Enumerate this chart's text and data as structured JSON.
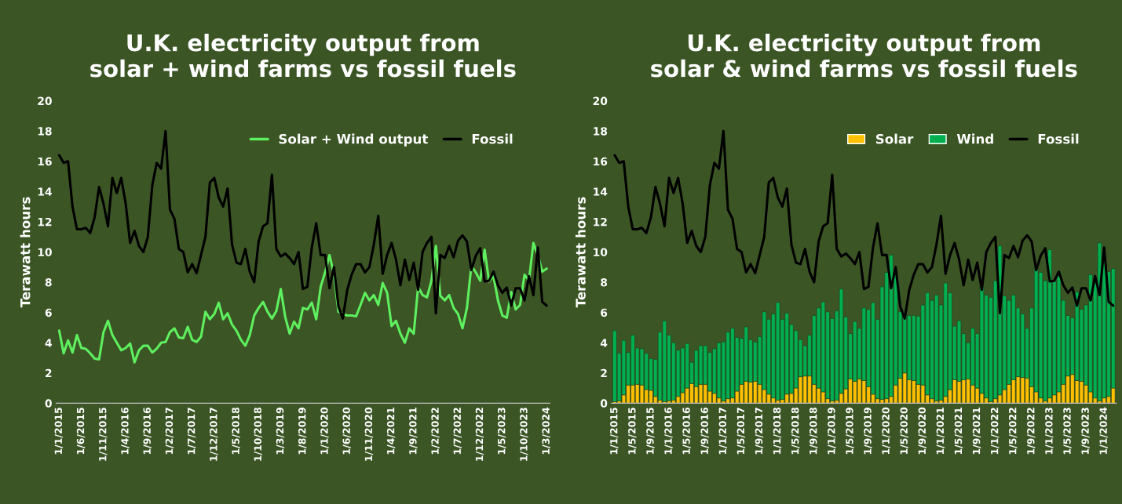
{
  "chart_data": [
    {
      "type": "line",
      "title": "U.K. electricity output from\nsolar + wind farms vs fossil fuels",
      "ylabel": "Terawatt hours",
      "ylim": [
        0,
        20
      ],
      "yticks": [
        0,
        2,
        4,
        6,
        8,
        10,
        12,
        14,
        16,
        18,
        20
      ],
      "legend": "top right",
      "categories": [
        "1/1/2015",
        null,
        null,
        null,
        null,
        "1/6/2015",
        null,
        null,
        null,
        null,
        "1/11/2015",
        null,
        null,
        null,
        null,
        "1/4/2016",
        null,
        null,
        null,
        null,
        "1/9/2016",
        null,
        null,
        null,
        null,
        "1/2/2017",
        null,
        null,
        null,
        null,
        "1/7/2017",
        null,
        null,
        null,
        null,
        "1/12/2017",
        null,
        null,
        null,
        null,
        "1/5/2018",
        null,
        null,
        null,
        null,
        "1/10/2018",
        null,
        null,
        null,
        null,
        "1/3/2019",
        null,
        null,
        null,
        null,
        "1/8/2019",
        null,
        null,
        null,
        null,
        "1/1/2020",
        null,
        null,
        null,
        null,
        "1/6/2020",
        null,
        null,
        null,
        null,
        "1/11/2020",
        null,
        null,
        null,
        null,
        "1/4/2021",
        null,
        null,
        null,
        null,
        "1/9/2021",
        null,
        null,
        null,
        null,
        "1/2/2022",
        null,
        null,
        null,
        null,
        "1/7/2022",
        null,
        null,
        null,
        null,
        "1/12/2022",
        null,
        null,
        null,
        null,
        "1/5/2023",
        null,
        null,
        null,
        null,
        "1/10/2023",
        null,
        null,
        null,
        null,
        "1/3/2024"
      ],
      "series": [
        {
          "name": "Solar + Wind output",
          "color": "#5ef05e",
          "values": [
            4.8,
            3.3,
            4.15,
            3.35,
            4.5,
            3.65,
            3.6,
            3.3,
            2.95,
            2.9,
            4.7,
            5.45,
            4.5,
            4.0,
            3.5,
            3.65,
            3.95,
            2.7,
            3.5,
            3.8,
            3.8,
            3.35,
            3.6,
            4.0,
            4.05,
            4.7,
            4.95,
            4.35,
            4.3,
            5.05,
            4.2,
            4.05,
            4.4,
            6.05,
            5.55,
            5.9,
            6.65,
            5.55,
            5.95,
            5.2,
            4.8,
            4.2,
            3.8,
            4.5,
            5.8,
            6.3,
            6.7,
            6.05,
            5.6,
            6.1,
            7.55,
            5.7,
            4.6,
            5.4,
            4.95,
            6.3,
            6.2,
            6.65,
            5.55,
            7.7,
            8.65,
            9.8,
            8.5,
            6.05,
            5.9,
            5.8,
            5.8,
            5.75,
            6.5,
            7.3,
            6.8,
            7.15,
            6.5,
            7.95,
            7.3,
            5.1,
            5.45,
            4.6,
            4.0,
            4.95,
            4.6,
            7.7,
            7.15,
            7.0,
            8.1,
            10.4,
            7.1,
            6.8,
            7.15,
            6.3,
            5.9,
            4.95,
            6.3,
            9.1,
            8.65,
            8.1,
            10.15,
            8.05,
            8.4,
            6.8,
            5.8,
            5.65,
            7.35,
            6.2,
            6.5,
            8.5,
            8.1,
            10.6,
            9.8,
            8.7,
            8.9
          ]
        },
        {
          "name": "Fossil",
          "color": "#000000",
          "values": [
            16.4,
            15.9,
            16.0,
            13.0,
            11.5,
            11.5,
            11.6,
            11.25,
            12.3,
            14.3,
            13.2,
            11.7,
            14.9,
            13.9,
            14.9,
            13.2,
            10.6,
            11.4,
            10.4,
            10.0,
            11.0,
            14.4,
            15.9,
            15.5,
            18.0,
            12.8,
            12.2,
            10.2,
            10.0,
            8.65,
            9.2,
            8.6,
            9.8,
            11.0,
            14.6,
            14.9,
            13.6,
            13.0,
            14.2,
            10.5,
            9.3,
            9.2,
            10.2,
            8.7,
            8.0,
            10.7,
            11.7,
            11.9,
            15.1,
            10.2,
            9.7,
            9.9,
            9.6,
            9.2,
            10.0,
            7.55,
            7.7,
            10.3,
            11.9,
            9.8,
            9.8,
            7.6,
            9.0,
            6.4,
            5.6,
            7.5,
            8.5,
            9.2,
            9.2,
            8.65,
            9.0,
            10.5,
            12.4,
            8.55,
            9.8,
            10.6,
            9.5,
            7.8,
            9.5,
            8.15,
            9.3,
            7.5,
            10.0,
            10.6,
            11.0,
            5.95,
            9.8,
            9.6,
            10.4,
            9.65,
            10.75,
            11.1,
            10.7,
            8.8,
            9.75,
            10.25,
            8.05,
            8.1,
            8.7,
            7.8,
            7.3,
            7.65,
            6.45,
            7.6,
            7.6,
            6.8,
            8.4,
            7.15,
            10.3,
            6.7,
            6.45
          ]
        }
      ]
    },
    {
      "type": "bar",
      "stacked": true,
      "title": "U.K. electricity output from\nsolar & wind farms vs fossil fuels",
      "ylabel": "Terawatt hours",
      "ylim": [
        0,
        20
      ],
      "yticks": [
        0,
        2,
        4,
        6,
        8,
        10,
        12,
        14,
        16,
        18,
        20
      ],
      "legend": "top right",
      "categories": [
        "1/1/2015",
        null,
        null,
        null,
        "1/5/2015",
        null,
        null,
        null,
        "1/9/2015",
        null,
        null,
        null,
        "1/1/2016",
        null,
        null,
        null,
        "1/5/2016",
        null,
        null,
        null,
        "1/9/2016",
        null,
        null,
        null,
        "1/1/2017",
        null,
        null,
        null,
        "1/5/2017",
        null,
        null,
        null,
        "1/9/2017",
        null,
        null,
        null,
        "1/1/2018",
        null,
        null,
        null,
        "1/5/2018",
        null,
        null,
        null,
        "1/9/2018",
        null,
        null,
        null,
        "1/1/2019",
        null,
        null,
        null,
        "1/5/2019",
        null,
        null,
        null,
        "1/9/2019",
        null,
        null,
        null,
        "1/1/2020",
        null,
        null,
        null,
        "1/5/2020",
        null,
        null,
        null,
        "1/9/2020",
        null,
        null,
        null,
        "1/1/2021",
        null,
        null,
        null,
        "1/5/2021",
        null,
        null,
        null,
        "1/9/2021",
        null,
        null,
        null,
        "1/1/2022",
        null,
        null,
        null,
        "1/5/2022",
        null,
        null,
        null,
        "1/9/2022",
        null,
        null,
        null,
        "1/1/2023",
        null,
        null,
        null,
        "1/5/2023",
        null,
        null,
        null,
        "1/9/2023",
        null,
        null,
        null,
        "1/1/2024",
        null,
        null
      ],
      "series": [
        {
          "name": "Solar",
          "color": "#ffc000",
          "values": [
            0.1,
            0.15,
            0.55,
            1.2,
            1.2,
            1.25,
            1.2,
            0.9,
            0.85,
            0.45,
            0.2,
            0.1,
            0.15,
            0.2,
            0.45,
            0.7,
            1.0,
            1.3,
            1.1,
            1.25,
            1.25,
            0.8,
            0.65,
            0.35,
            0.15,
            0.3,
            0.35,
            0.8,
            1.25,
            1.45,
            1.4,
            1.45,
            1.25,
            0.9,
            0.6,
            0.35,
            0.2,
            0.25,
            0.6,
            0.65,
            1.0,
            1.75,
            1.8,
            1.8,
            1.25,
            1.0,
            0.75,
            0.3,
            0.15,
            0.2,
            0.65,
            0.95,
            1.6,
            1.45,
            1.6,
            1.5,
            1.1,
            0.6,
            0.3,
            0.25,
            0.3,
            0.45,
            1.2,
            1.65,
            2.0,
            1.55,
            1.5,
            1.25,
            1.2,
            0.55,
            0.3,
            0.15,
            0.2,
            0.45,
            0.9,
            1.55,
            1.45,
            1.55,
            1.6,
            1.2,
            1.0,
            0.65,
            0.35,
            0.1,
            0.3,
            0.55,
            0.9,
            1.25,
            1.55,
            1.75,
            1.7,
            1.65,
            1.1,
            0.75,
            0.35,
            0.15,
            0.35,
            0.55,
            0.75,
            1.25,
            1.8,
            1.9,
            1.5,
            1.45,
            1.2,
            0.75,
            0.35,
            0.15,
            0.35,
            0.45,
            1.0
          ]
        },
        {
          "name": "Wind",
          "color": "#00b050",
          "values": [
            4.7,
            3.15,
            3.6,
            2.15,
            3.3,
            2.4,
            2.4,
            2.4,
            2.1,
            2.45,
            4.5,
            5.35,
            4.35,
            3.8,
            3.05,
            2.95,
            2.95,
            1.4,
            2.4,
            2.55,
            2.55,
            2.55,
            2.95,
            3.65,
            3.9,
            4.4,
            4.6,
            3.55,
            3.05,
            3.6,
            2.8,
            2.6,
            3.15,
            5.15,
            4.95,
            5.55,
            6.45,
            5.3,
            5.35,
            4.55,
            3.8,
            2.45,
            2.0,
            2.7,
            4.55,
            5.3,
            5.95,
            5.75,
            5.45,
            5.9,
            6.9,
            4.75,
            3.0,
            3.95,
            3.35,
            4.8,
            5.1,
            6.05,
            5.25,
            7.45,
            8.35,
            9.35,
            7.3,
            4.4,
            3.9,
            4.25,
            4.3,
            4.5,
            5.3,
            6.75,
            6.5,
            7.0,
            6.3,
            7.5,
            6.4,
            3.55,
            4.0,
            3.05,
            2.4,
            3.75,
            3.6,
            7.05,
            6.8,
            6.9,
            7.8,
            9.85,
            6.2,
            5.55,
            5.6,
            4.55,
            4.2,
            3.3,
            5.2,
            8.35,
            8.3,
            7.95,
            9.8,
            7.5,
            7.65,
            5.55,
            4.0,
            3.75,
            5.85,
            4.75,
            5.3,
            7.75,
            7.75,
            10.45,
            9.45,
            8.25,
            7.9
          ]
        },
        {
          "name": "Fossil",
          "type": "line",
          "color": "#000000",
          "values": [
            16.4,
            15.9,
            16.0,
            13.0,
            11.5,
            11.5,
            11.6,
            11.25,
            12.3,
            14.3,
            13.2,
            11.7,
            14.9,
            13.9,
            14.9,
            13.2,
            10.6,
            11.4,
            10.4,
            10.0,
            11.0,
            14.4,
            15.9,
            15.5,
            18.0,
            12.8,
            12.2,
            10.2,
            10.0,
            8.65,
            9.2,
            8.6,
            9.8,
            11.0,
            14.6,
            14.9,
            13.6,
            13.0,
            14.2,
            10.5,
            9.3,
            9.2,
            10.2,
            8.7,
            8.0,
            10.7,
            11.7,
            11.9,
            15.1,
            10.2,
            9.7,
            9.9,
            9.6,
            9.2,
            10.0,
            7.55,
            7.7,
            10.3,
            11.9,
            9.8,
            9.8,
            7.6,
            9.0,
            6.4,
            5.6,
            7.5,
            8.5,
            9.2,
            9.2,
            8.65,
            9.0,
            10.5,
            12.4,
            8.55,
            9.8,
            10.6,
            9.5,
            7.8,
            9.5,
            8.15,
            9.3,
            7.5,
            10.0,
            10.6,
            11.0,
            5.95,
            9.8,
            9.6,
            10.4,
            9.65,
            10.75,
            11.1,
            10.7,
            8.8,
            9.75,
            10.25,
            8.05,
            8.1,
            8.7,
            7.8,
            7.3,
            7.65,
            6.45,
            7.6,
            7.6,
            6.8,
            8.4,
            7.15,
            10.3,
            6.7,
            6.45
          ]
        }
      ]
    }
  ]
}
